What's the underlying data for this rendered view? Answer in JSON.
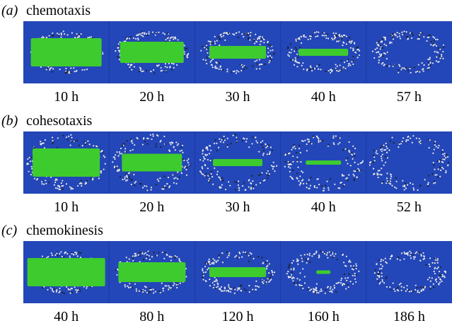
{
  "panels": [
    {
      "label": "(a)",
      "title": "chemotaxis",
      "times": [
        "10 h",
        "20 h",
        "30 h",
        "40 h",
        "57 h"
      ]
    },
    {
      "label": "(b)",
      "title": "cohesotaxis",
      "times": [
        "10 h",
        "20 h",
        "30 h",
        "40 h",
        "52 h"
      ]
    },
    {
      "label": "(c)",
      "title": "chemokinesis",
      "times": [
        "40 h",
        "80 h",
        "120 h",
        "160 h",
        "186 h"
      ]
    }
  ]
}
